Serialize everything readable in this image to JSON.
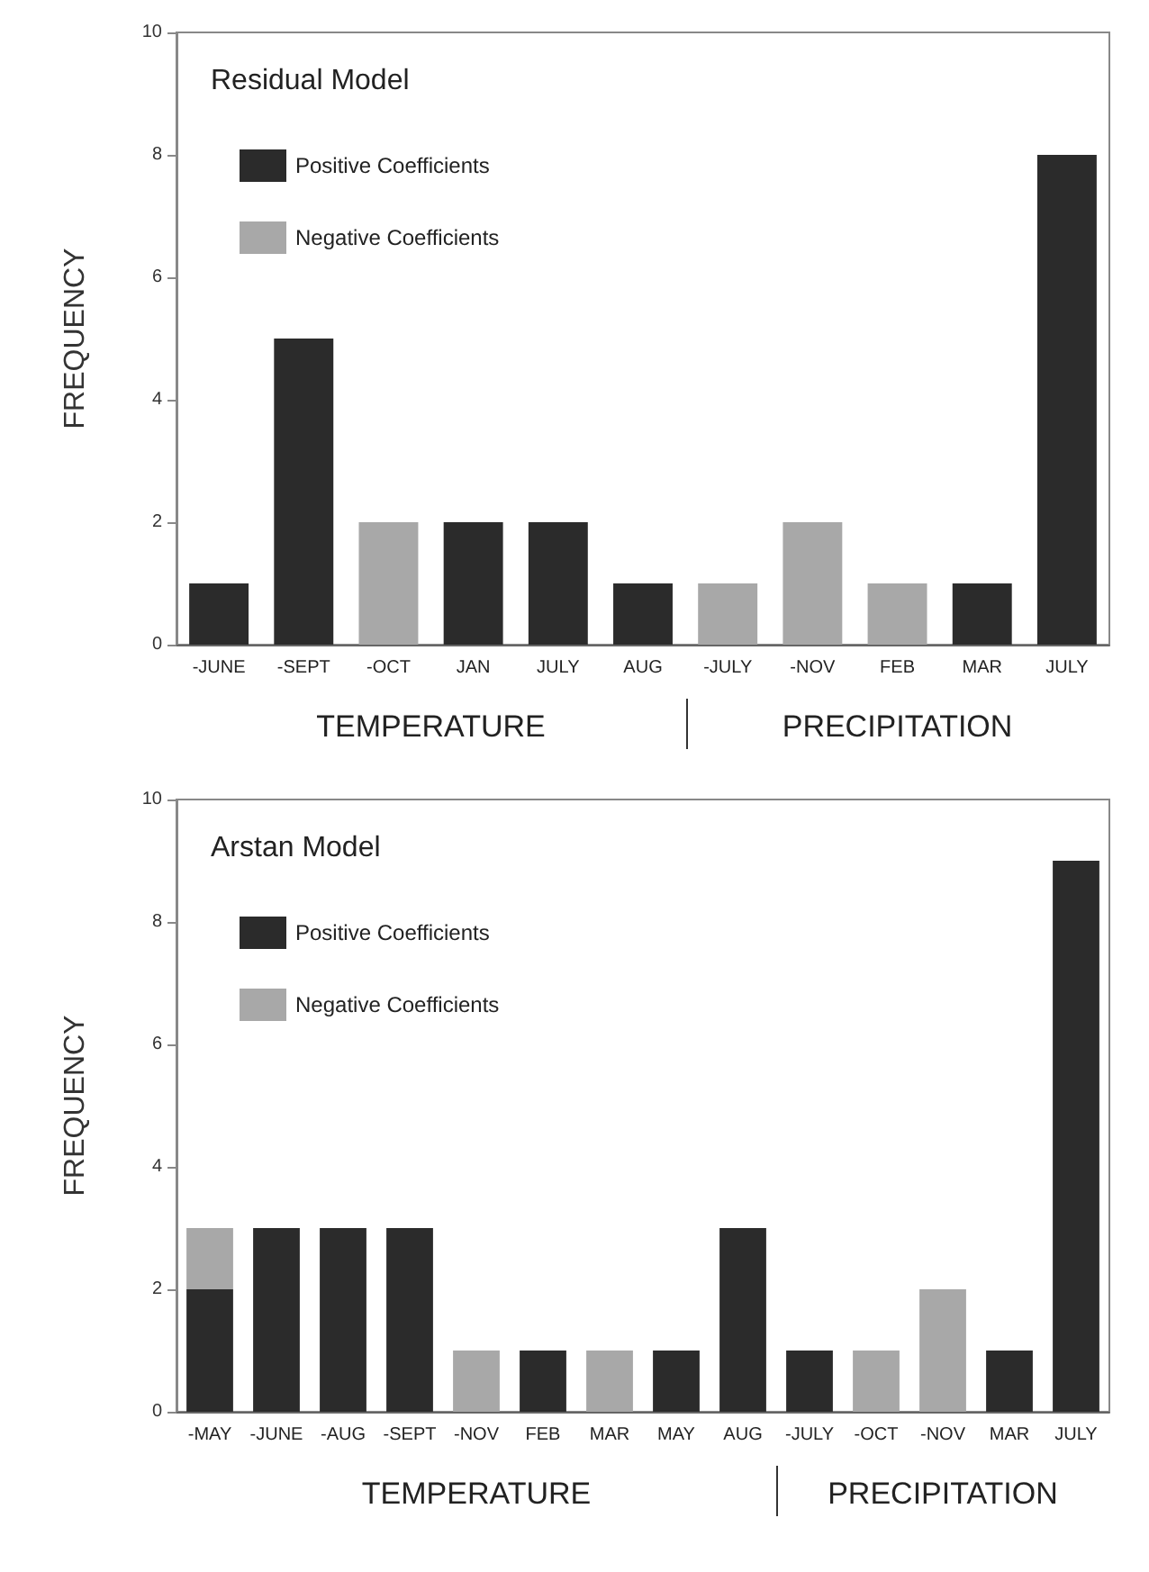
{
  "chart_data": [
    {
      "type": "bar",
      "title": "Residual Model",
      "ylabel": "FREQUENCY",
      "categories": [
        "-JUNE",
        "-SEPT",
        "-OCT",
        "JAN",
        "JULY",
        "AUG",
        "-JULY",
        "-NOV",
        "FEB",
        "MAR",
        "JULY"
      ],
      "stacked": true,
      "series": [
        {
          "name": "Positive Coefficients",
          "color": "#2b2b2b",
          "values": [
            1,
            5,
            null,
            2,
            2,
            1,
            null,
            null,
            null,
            1,
            8
          ]
        },
        {
          "name": "Negative Coefficients",
          "color": "#a8a8a8",
          "values": [
            null,
            null,
            2,
            null,
            null,
            null,
            1,
            2,
            1,
            null,
            null
          ]
        }
      ],
      "ylim": [
        0,
        10
      ],
      "yticks": [
        0,
        2,
        4,
        6,
        8,
        10
      ],
      "grid": false,
      "legend": "top left",
      "annotations": [
        "TEMPERATURE",
        "PRECIPITATION"
      ]
    },
    {
      "type": "bar",
      "title": "Arstan Model",
      "ylabel": "FREQUENCY",
      "categories": [
        "-MAY",
        "-JUNE",
        "-AUG",
        "-SEPT",
        "-NOV",
        "FEB",
        "MAR",
        "MAY",
        "AUG",
        "-JULY",
        "-OCT",
        "-NOV",
        "MAR",
        "JULY"
      ],
      "stacked": true,
      "series": [
        {
          "name": "Positive Coefficients",
          "color": "#2b2b2b",
          "values": [
            2,
            3,
            3,
            3,
            null,
            1,
            null,
            1,
            3,
            1,
            null,
            null,
            1,
            9
          ]
        },
        {
          "name": "Negative Coefficients",
          "color": "#a8a8a8",
          "values": [
            1,
            null,
            null,
            null,
            1,
            null,
            1,
            null,
            null,
            null,
            1,
            2,
            null,
            null
          ]
        }
      ],
      "ylim": [
        0,
        10
      ],
      "yticks": [
        0,
        2,
        4,
        6,
        8,
        10
      ],
      "grid": false,
      "legend": "top left",
      "annotations": [
        "TEMPERATURE",
        "PRECIPITATION"
      ]
    }
  ]
}
